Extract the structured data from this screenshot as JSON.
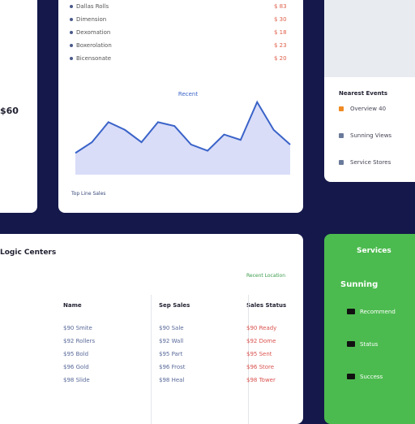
{
  "left": {
    "amount": "$60"
  },
  "list": {
    "items": [
      "Dallas Rolls",
      "Dimension",
      "Dexomation",
      "Boxerolation",
      "Bicensonate"
    ],
    "prices": [
      "$ 83",
      "$ 30",
      "$ 18",
      "$ 23",
      "$ 20"
    ]
  },
  "chart": {
    "type": "line",
    "title": "Recent",
    "values": [
      28,
      42,
      68,
      58,
      42,
      68,
      63,
      39,
      31,
      52,
      45,
      94,
      58,
      39
    ],
    "ylim": [
      0,
      100
    ],
    "color": "#3a63c8",
    "footer": "Top Line Sales"
  },
  "events": {
    "title": "Nearest Events",
    "items": [
      "Overview 40",
      "Sunning Views",
      "Service Stores"
    ]
  },
  "centers": {
    "title": "Logic Centers",
    "subtitle": "Recent Location",
    "columns": [
      "Name",
      "Sep Sales",
      "Sales Status"
    ],
    "rows": [
      [
        "$90 Smite",
        "$90 Sale",
        "$90 Ready"
      ],
      [
        "$92 Rollers",
        "$92 Wall",
        "$92 Dome"
      ],
      [
        "$95 Bold",
        "$95 Part",
        "$95 Sent"
      ],
      [
        "$96 Gold",
        "$96 Frost",
        "$96 Store"
      ],
      [
        "$98 Slide",
        "$98 Heal",
        "$98 Tower"
      ]
    ]
  },
  "services": {
    "title": "Services",
    "subtitle": "Sunning",
    "items": [
      "Recommend",
      "Status",
      "Success"
    ]
  }
}
